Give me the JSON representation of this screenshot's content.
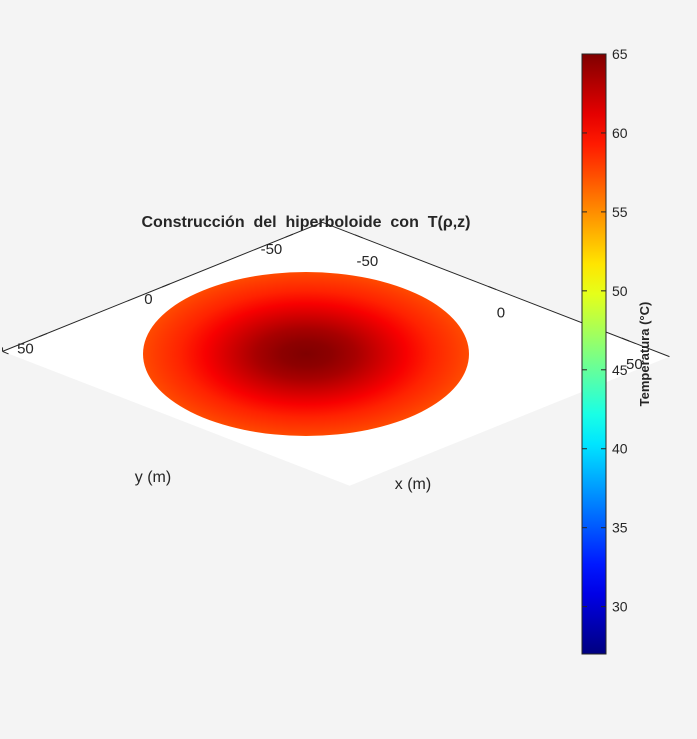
{
  "chart_data": {
    "type": "surface",
    "title": "Construcción  del  hiperboloide  con  T(ρ,z)",
    "xlabel": "x (m)",
    "ylabel": "y (m)",
    "zlabel": "",
    "xlim": [
      -65,
      65
    ],
    "ylim": [
      -65,
      65
    ],
    "x_ticks": [
      -50,
      0,
      50
    ],
    "y_ticks": [
      -50,
      0,
      50
    ],
    "z_ticks": [
      0
    ],
    "surface": {
      "shape": "disk",
      "radius_m": 65,
      "z_value": 0,
      "temperature_profile": [
        {
          "rho": 0,
          "T": 65
        },
        {
          "rho": 10,
          "T": 64.5
        },
        {
          "rho": 20,
          "T": 63.5
        },
        {
          "rho": 30,
          "T": 62
        },
        {
          "rho": 40,
          "T": 60.5
        },
        {
          "rho": 50,
          "T": 59
        },
        {
          "rho": 60,
          "T": 58
        },
        {
          "rho": 65,
          "T": 57.5
        }
      ]
    },
    "colorbar": {
      "label": "Temperatura (°C)",
      "colormap": "jet",
      "min": 27,
      "max": 65,
      "ticks": [
        30,
        35,
        40,
        45,
        50,
        55,
        60,
        65
      ]
    },
    "colors": {
      "background": "#f4f4f4",
      "axes_background": "#ffffff",
      "axis_line": "#262626"
    }
  }
}
